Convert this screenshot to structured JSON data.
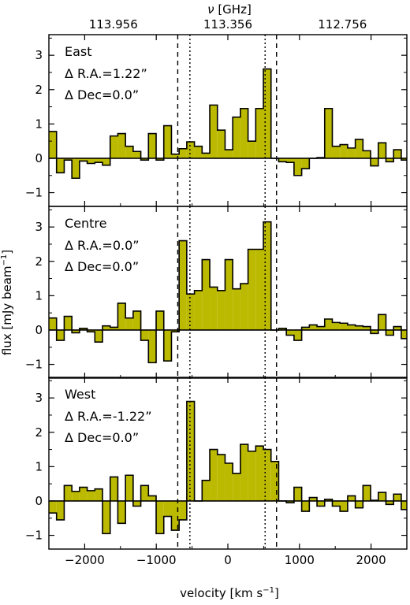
{
  "colors": {
    "fill": "#bcba00",
    "edge": "#000000"
  },
  "figure": {
    "xlabel": "velocity [km s",
    "xlabel_sup": "−1",
    "xlabel_end": "]",
    "ylabel": "flux [mJy beam",
    "ylabel_sup": "−1",
    "ylabel_end": "]",
    "top_axis_label_sym": "ν",
    "top_axis_label": " [GHz]",
    "top_ticks": [
      {
        "label": "113.956",
        "v": -1600
      },
      {
        "label": "113.356",
        "v": 0
      },
      {
        "label": "112.756",
        "v": 1600
      }
    ],
    "x_ticks": [
      {
        "label": "−2000",
        "v": -2000
      },
      {
        "label": "−1000",
        "v": -1000
      },
      {
        "label": "0",
        "v": 0
      },
      {
        "label": "1000",
        "v": 1000
      },
      {
        "label": "2000",
        "v": 2000
      }
    ],
    "y_ticks": [
      {
        "label": "−1",
        "v": -1
      },
      {
        "label": "0",
        "v": 0
      },
      {
        "label": "1",
        "v": 1
      },
      {
        "label": "2",
        "v": 2
      },
      {
        "label": "3",
        "v": 3
      }
    ]
  },
  "chart_data": [
    {
      "type": "bar",
      "panel_title": "East",
      "annotation_ra": "Δ R.A.=1.22”",
      "annotation_dec": "Δ Dec=0.0”",
      "xlim": [
        -2500,
        2500
      ],
      "ylim": [
        -1.4,
        3.6
      ],
      "dashed_lines": [
        -700,
        680
      ],
      "dotted_lines": [
        -530,
        520
      ],
      "bin_width": 107,
      "x": [
        -2500,
        -2393,
        -2286,
        -2179,
        -2072,
        -1965,
        -1858,
        -1751,
        -1644,
        -1537,
        -1430,
        -1323,
        -1216,
        -1109,
        -1002,
        -895,
        -788,
        -681,
        -574,
        -467,
        -360,
        -253,
        -146,
        -39,
        68,
        175,
        282,
        389,
        496,
        603,
        710,
        817,
        924,
        1031,
        1138,
        1245,
        1352,
        1459,
        1566,
        1673,
        1780,
        1887,
        1994,
        2101,
        2208,
        2315,
        2422
      ],
      "values": [
        0.78,
        -0.42,
        -0.05,
        -0.58,
        -0.08,
        -0.15,
        -0.12,
        -0.2,
        0.65,
        0.72,
        0.35,
        0.2,
        -0.05,
        0.72,
        -0.05,
        0.95,
        0.12,
        0.28,
        0.48,
        0.35,
        0.15,
        1.55,
        0.82,
        0.25,
        1.2,
        1.45,
        0.5,
        1.45,
        2.6,
        0.0,
        -0.1,
        -0.12,
        -0.5,
        -0.3,
        0.0,
        0.02,
        1.45,
        0.35,
        0.4,
        0.3,
        0.55,
        0.22,
        -0.22,
        0.45,
        -0.1,
        0.25,
        -0.05
      ]
    },
    {
      "type": "bar",
      "panel_title": "Centre",
      "annotation_ra": "Δ R.A.=0.0”",
      "annotation_dec": "Δ Dec=0.0”",
      "xlim": [
        -2500,
        2500
      ],
      "ylim": [
        -1.4,
        3.6
      ],
      "dashed_lines": [
        -700,
        680
      ],
      "dotted_lines": [
        -530,
        520
      ],
      "bin_width": 107,
      "x": [
        -2500,
        -2393,
        -2286,
        -2179,
        -2072,
        -1965,
        -1858,
        -1751,
        -1644,
        -1537,
        -1430,
        -1323,
        -1216,
        -1109,
        -1002,
        -895,
        -788,
        -681,
        -574,
        -467,
        -360,
        -253,
        -146,
        -39,
        68,
        175,
        282,
        389,
        496,
        603,
        710,
        817,
        924,
        1031,
        1138,
        1245,
        1352,
        1459,
        1566,
        1673,
        1780,
        1887,
        1994,
        2101,
        2208,
        2315,
        2422
      ],
      "values": [
        0.35,
        -0.3,
        0.4,
        -0.08,
        0.05,
        -0.05,
        -0.35,
        0.12,
        0.08,
        0.78,
        0.35,
        0.55,
        -0.3,
        -0.95,
        0.55,
        -0.9,
        -0.05,
        2.6,
        1.05,
        1.15,
        2.05,
        1.25,
        1.15,
        2.05,
        1.2,
        1.35,
        2.35,
        2.35,
        3.15,
        0.0,
        0.05,
        -0.15,
        -0.3,
        0.08,
        0.15,
        0.1,
        0.32,
        0.22,
        0.2,
        0.15,
        0.12,
        0.1,
        -0.1,
        0.45,
        -0.15,
        0.1,
        -0.25
      ]
    },
    {
      "type": "bar",
      "panel_title": "West",
      "annotation_ra": "Δ R.A.=-1.22”",
      "annotation_dec": "Δ Dec=0.0”",
      "xlim": [
        -2500,
        2500
      ],
      "ylim": [
        -1.4,
        3.6
      ],
      "dashed_lines": [
        -700,
        680
      ],
      "dotted_lines": [
        -530,
        520
      ],
      "bin_width": 107,
      "x": [
        -2500,
        -2393,
        -2286,
        -2179,
        -2072,
        -1965,
        -1858,
        -1751,
        -1644,
        -1537,
        -1430,
        -1323,
        -1216,
        -1109,
        -1002,
        -895,
        -788,
        -681,
        -574,
        -467,
        -360,
        -253,
        -146,
        -39,
        68,
        175,
        282,
        389,
        496,
        603,
        710,
        817,
        924,
        1031,
        1138,
        1245,
        1352,
        1459,
        1566,
        1673,
        1780,
        1887,
        1994,
        2101,
        2208,
        2315,
        2422
      ],
      "values": [
        -0.35,
        -0.55,
        0.45,
        0.28,
        0.4,
        0.3,
        0.35,
        -0.95,
        0.7,
        -0.65,
        0.75,
        -0.15,
        0.45,
        0.15,
        -0.95,
        -0.45,
        -0.85,
        -0.55,
        2.9,
        0.0,
        0.6,
        1.5,
        1.35,
        1.1,
        0.8,
        1.65,
        1.45,
        1.6,
        1.5,
        1.15,
        0.0,
        -0.05,
        0.4,
        -0.3,
        0.1,
        -0.15,
        0.05,
        -0.15,
        -0.3,
        0.15,
        -0.2,
        0.45,
        0.02,
        0.25,
        -0.1,
        0.2,
        -0.25
      ]
    }
  ]
}
